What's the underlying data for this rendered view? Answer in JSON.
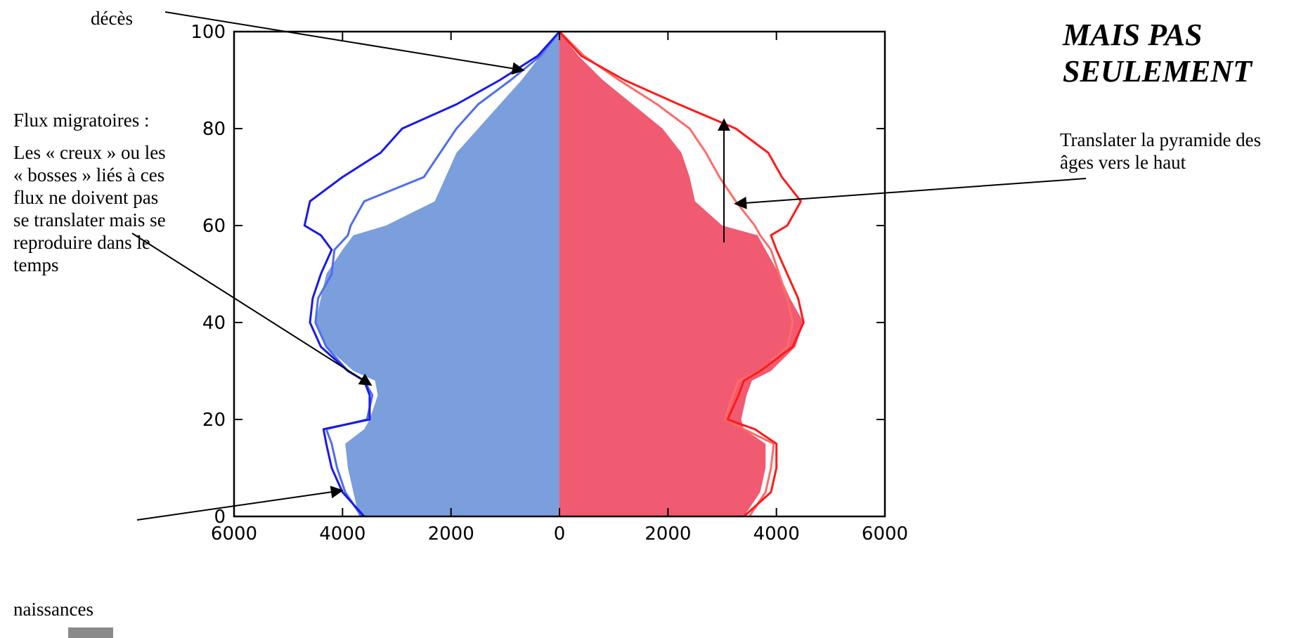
{
  "chart_data": {
    "type": "area",
    "chart_kind": "population-pyramid",
    "title": "",
    "xlabel": "",
    "ylabel": "",
    "xlim": [
      -6000,
      6000
    ],
    "ylim": [
      0,
      100
    ],
    "x_ticks": [
      -6000,
      -4000,
      -2000,
      0,
      2000,
      4000,
      6000
    ],
    "x_tick_labels": [
      "6000",
      "4000",
      "2000",
      "0",
      "2000",
      "4000",
      "6000"
    ],
    "y_ticks": [
      0,
      20,
      40,
      60,
      80,
      100
    ],
    "y_tick_labels": [
      "0",
      "20",
      "40",
      "60",
      "80",
      "100"
    ],
    "grid": false,
    "legend": "none",
    "series": [
      {
        "side": "left",
        "kind": "filled",
        "color": "#7b9edc",
        "ages": [
          0,
          5,
          10,
          15,
          18,
          20,
          25,
          28,
          30,
          35,
          40,
          45,
          50,
          55,
          58,
          60,
          65,
          70,
          75,
          80,
          85,
          90,
          95,
          100
        ],
        "values": [
          3700,
          3800,
          3900,
          3950,
          3600,
          3500,
          3350,
          3400,
          3800,
          4300,
          4500,
          4400,
          4300,
          4000,
          3800,
          3200,
          2300,
          2100,
          1900,
          1500,
          1100,
          700,
          350,
          0
        ]
      },
      {
        "side": "left",
        "kind": "line",
        "color": "#4f6fe8",
        "ages": [
          0,
          5,
          10,
          15,
          18,
          20,
          25,
          28,
          30,
          35,
          40,
          45,
          50,
          55,
          58,
          60,
          65,
          70,
          75,
          80,
          85,
          90,
          95,
          100
        ],
        "values": [
          3650,
          3950,
          4100,
          4200,
          4300,
          3550,
          3450,
          3600,
          3900,
          4300,
          4500,
          4450,
          4200,
          4150,
          3900,
          3850,
          3600,
          2500,
          2200,
          1900,
          1500,
          900,
          350,
          0
        ]
      },
      {
        "side": "left",
        "kind": "line",
        "color": "#1a1ae8",
        "ages": [
          0,
          5,
          10,
          15,
          18,
          20,
          25,
          28,
          30,
          35,
          40,
          45,
          50,
          55,
          58,
          60,
          65,
          70,
          75,
          80,
          85,
          90,
          95,
          100
        ],
        "values": [
          3600,
          4000,
          4200,
          4300,
          4350,
          3500,
          3500,
          3600,
          3900,
          4400,
          4600,
          4550,
          4400,
          4200,
          4400,
          4700,
          4600,
          4000,
          3300,
          2900,
          1900,
          1100,
          400,
          0
        ]
      },
      {
        "side": "right",
        "kind": "filled",
        "color": "#f05b72",
        "ages": [
          0,
          5,
          10,
          15,
          18,
          20,
          25,
          28,
          30,
          35,
          40,
          45,
          50,
          55,
          58,
          60,
          65,
          70,
          75,
          80,
          85,
          90,
          95,
          100
        ],
        "values": [
          3400,
          3700,
          3800,
          3800,
          3400,
          3350,
          3450,
          3550,
          3900,
          4350,
          4500,
          4250,
          4050,
          3800,
          3650,
          3000,
          2500,
          2400,
          2250,
          1900,
          1350,
          800,
          350,
          0
        ]
      },
      {
        "side": "right",
        "kind": "line",
        "color": "#ff6b6b",
        "ages": [
          0,
          5,
          10,
          15,
          18,
          20,
          25,
          28,
          30,
          35,
          40,
          45,
          50,
          55,
          58,
          60,
          65,
          70,
          75,
          80,
          85,
          90,
          95,
          100
        ],
        "values": [
          3500,
          3800,
          3900,
          3950,
          3400,
          3050,
          3200,
          3300,
          3700,
          4200,
          4300,
          4200,
          4050,
          3900,
          3700,
          3600,
          3250,
          2950,
          2700,
          2400,
          1800,
          1100,
          450,
          0
        ]
      },
      {
        "side": "right",
        "kind": "line",
        "color": "#ff1a1a",
        "ages": [
          0,
          5,
          10,
          15,
          18,
          20,
          25,
          28,
          30,
          35,
          40,
          45,
          50,
          55,
          58,
          60,
          65,
          70,
          75,
          80,
          85,
          90,
          95,
          100
        ],
        "values": [
          3400,
          3900,
          4000,
          4000,
          3600,
          3100,
          3300,
          3400,
          3700,
          4300,
          4500,
          4400,
          4200,
          4000,
          3900,
          4200,
          4450,
          4100,
          3850,
          3250,
          2200,
          1200,
          400,
          0
        ]
      }
    ],
    "annotations": [
      {
        "text": "décès"
      },
      {
        "text": "Flux migratoires :"
      },
      {
        "text": "Les « creux » ou les « bosses » liés à ces flux ne doivent pas se translater mais se reproduire dans le temps"
      },
      {
        "text": "naissances"
      },
      {
        "text": "Translater la pyramide des âges vers le haut"
      }
    ]
  },
  "side_title": "MAIS PAS SEULEMENT",
  "annotations": {
    "deces": "décès",
    "flux_title": "Flux migratoires :",
    "flux_body": "Les « creux » ou les « bosses » liés à ces flux ne doivent pas se translater mais se reproduire dans le temps",
    "naissances": "naissances",
    "translate": "Translater la pyramide des âges vers le haut"
  }
}
